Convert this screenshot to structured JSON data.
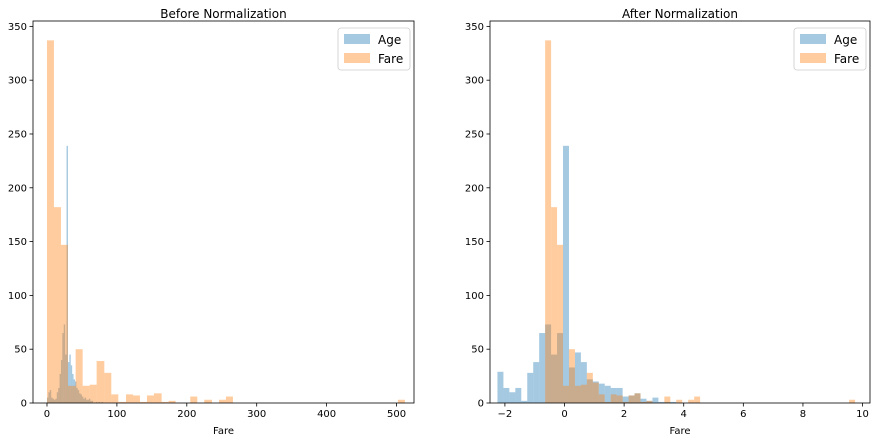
{
  "colors": {
    "age": "#1f77b4",
    "fare": "#ff7f0e",
    "overlap": "#8c7a55"
  },
  "chart_data": [
    {
      "type": "histogram",
      "title": "Before Normalization",
      "xlabel": "Fare",
      "ylabel": "",
      "xlim": [
        -20,
        525
      ],
      "ylim": [
        0,
        355
      ],
      "xticks": [
        0,
        100,
        200,
        300,
        400,
        500
      ],
      "yticks": [
        0,
        50,
        100,
        150,
        200,
        250,
        300,
        350
      ],
      "legend": {
        "placement": "top-right",
        "entries": [
          "Age",
          "Fare"
        ]
      },
      "series": [
        {
          "name": "Age",
          "bins": [
            [
              0,
              2,
              5
            ],
            [
              2,
              4,
              10
            ],
            [
              4,
              6,
              12
            ],
            [
              6,
              8,
              5
            ],
            [
              8,
              10,
              4
            ],
            [
              10,
              12,
              3
            ],
            [
              12,
              14,
              4
            ],
            [
              14,
              16,
              10
            ],
            [
              16,
              18,
              14
            ],
            [
              18,
              20,
              27
            ],
            [
              20,
              22,
              40
            ],
            [
              22,
              24,
              65
            ],
            [
              24,
              26,
              73
            ],
            [
              26,
              28,
              45
            ],
            [
              28,
              30,
              239
            ],
            [
              30,
              32,
              38
            ],
            [
              32,
              34,
              45
            ],
            [
              34,
              36,
              35
            ],
            [
              36,
              38,
              27
            ],
            [
              38,
              40,
              22
            ],
            [
              40,
              42,
              20
            ],
            [
              42,
              44,
              14
            ],
            [
              44,
              46,
              12
            ],
            [
              46,
              48,
              9
            ],
            [
              48,
              50,
              8
            ],
            [
              50,
              52,
              6
            ],
            [
              52,
              54,
              4
            ],
            [
              54,
              56,
              5
            ],
            [
              56,
              58,
              3
            ],
            [
              58,
              60,
              3
            ],
            [
              60,
              62,
              4
            ],
            [
              62,
              64,
              2
            ],
            [
              64,
              66,
              2
            ],
            [
              70,
              72,
              1
            ],
            [
              74,
              76,
              1
            ],
            [
              78,
              80,
              1
            ]
          ]
        },
        {
          "name": "Fare",
          "bins": [
            [
              0,
              10,
              337
            ],
            [
              10,
              20,
              182
            ],
            [
              20,
              30,
              147
            ],
            [
              30,
              41,
              16
            ],
            [
              41,
              51,
              50
            ],
            [
              51,
              61,
              16
            ],
            [
              61,
              71,
              17
            ],
            [
              71,
              82,
              39
            ],
            [
              82,
              92,
              28
            ],
            [
              92,
              102,
              8
            ],
            [
              102,
              113,
              1
            ],
            [
              113,
              123,
              8
            ],
            [
              123,
              133,
              7
            ],
            [
              133,
              143,
              1
            ],
            [
              143,
              153,
              7
            ],
            [
              153,
              164,
              9
            ],
            [
              164,
              174,
              1
            ],
            [
              174,
              184,
              2
            ],
            [
              205,
              215,
              6
            ],
            [
              225,
              236,
              3
            ],
            [
              246,
              256,
              3
            ],
            [
              256,
              266,
              6
            ],
            [
              502,
              512,
              3
            ]
          ]
        }
      ]
    },
    {
      "type": "histogram",
      "title": "After Normalization",
      "xlabel": "Fare",
      "ylabel": "",
      "xlim": [
        -2.5,
        10.25
      ],
      "ylim": [
        0,
        355
      ],
      "xticks": [
        -2,
        0,
        2,
        4,
        6,
        8,
        10
      ],
      "yticks": [
        0,
        50,
        100,
        150,
        200,
        250,
        300,
        350
      ],
      "legend": {
        "placement": "top-right",
        "entries": [
          "Age",
          "Fare"
        ]
      },
      "series": [
        {
          "name": "Age",
          "bins": [
            [
              -2.25,
              -2.05,
              29
            ],
            [
              -2.05,
              -1.85,
              14
            ],
            [
              -1.85,
              -1.65,
              10
            ],
            [
              -1.65,
              -1.45,
              14
            ],
            [
              -1.45,
              -1.25,
              2
            ],
            [
              -1.25,
              -1.05,
              28
            ],
            [
              -1.05,
              -0.85,
              38
            ],
            [
              -0.85,
              -0.65,
              65
            ],
            [
              -0.65,
              -0.45,
              73
            ],
            [
              -0.45,
              -0.25,
              45
            ],
            [
              -0.25,
              -0.05,
              65
            ],
            [
              -0.05,
              0.15,
              239
            ],
            [
              0.15,
              0.35,
              33
            ],
            [
              0.35,
              0.55,
              47
            ],
            [
              0.55,
              0.75,
              38
            ],
            [
              0.75,
              0.95,
              22
            ],
            [
              0.95,
              1.15,
              20
            ],
            [
              1.15,
              1.35,
              18
            ],
            [
              1.35,
              1.55,
              16
            ],
            [
              1.55,
              1.75,
              14
            ],
            [
              1.75,
              1.95,
              14
            ],
            [
              1.95,
              2.15,
              6
            ],
            [
              2.15,
              2.35,
              7
            ],
            [
              2.35,
              2.55,
              9
            ],
            [
              2.55,
              2.75,
              4
            ],
            [
              2.75,
              2.95,
              2
            ],
            [
              2.95,
              3.15,
              5
            ],
            [
              3.15,
              3.35,
              1
            ],
            [
              3.35,
              3.55,
              1
            ],
            [
              3.55,
              3.75,
              1
            ]
          ]
        },
        {
          "name": "Fare",
          "bins": [
            [
              -0.65,
              -0.45,
              337
            ],
            [
              -0.45,
              -0.25,
              182
            ],
            [
              -0.25,
              -0.05,
              147
            ],
            [
              -0.05,
              0.15,
              16
            ],
            [
              0.15,
              0.35,
              50
            ],
            [
              0.35,
              0.55,
              16
            ],
            [
              0.55,
              0.75,
              17
            ],
            [
              0.75,
              0.95,
              28
            ],
            [
              0.95,
              1.15,
              19
            ],
            [
              1.15,
              1.35,
              8
            ],
            [
              1.35,
              1.55,
              1
            ],
            [
              1.55,
              1.75,
              8
            ],
            [
              1.75,
              1.95,
              7
            ],
            [
              1.95,
              2.15,
              1
            ],
            [
              2.15,
              2.35,
              7
            ],
            [
              2.35,
              2.55,
              9
            ],
            [
              2.55,
              2.75,
              1
            ],
            [
              2.75,
              2.95,
              2
            ],
            [
              3.35,
              3.55,
              6
            ],
            [
              3.75,
              3.95,
              3
            ],
            [
              4.15,
              4.35,
              3
            ],
            [
              4.35,
              4.55,
              6
            ],
            [
              9.55,
              9.75,
              3
            ]
          ]
        }
      ]
    }
  ]
}
